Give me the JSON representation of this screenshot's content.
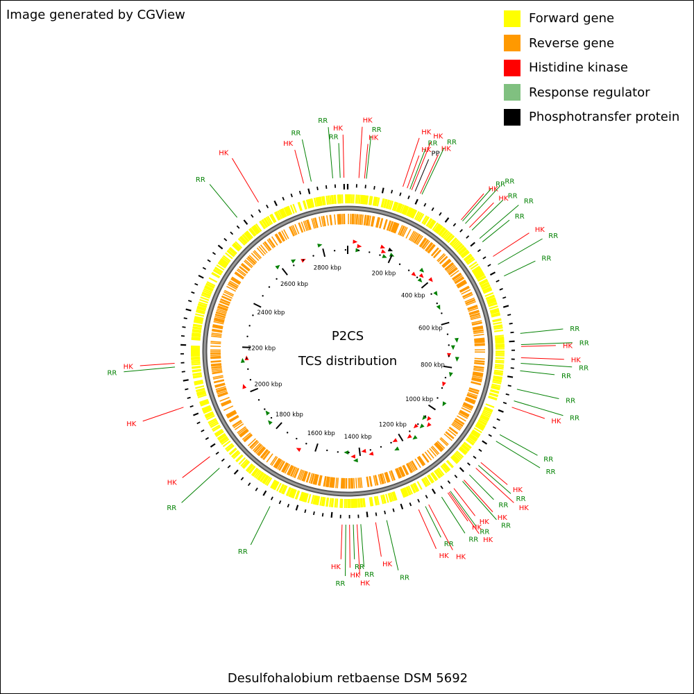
{
  "credit": "Image generated by CGView",
  "title": "P2CS",
  "subtitle": "TCS distribution",
  "organism": "Desulfohalobium retbaense DSM 5692",
  "legend": [
    {
      "label": "Forward gene",
      "color": "#ffff00"
    },
    {
      "label": "Reverse gene",
      "color": "#ff9900"
    },
    {
      "label": "Histidine kinase",
      "color": "#ff0000"
    },
    {
      "label": "Response regulator",
      "color": "#80c080"
    },
    {
      "label": "Phosphotransfer protein",
      "color": "#000000"
    }
  ],
  "colors": {
    "forward": "#ffff00",
    "reverse": "#ff9900",
    "hk": "#ff0000",
    "rr": "#008000",
    "rr_legend": "#80c080",
    "pp": "#000000",
    "backbone": "#808080"
  },
  "genome_length_kbp": 2910,
  "tick_labels": [
    "200 kbp",
    "400 kbp",
    "600 kbp",
    "800 kbp",
    "1000 kbp",
    "1200 kbp",
    "1400 kbp",
    "1600 kbp",
    "1800 kbp",
    "2000 kbp",
    "2200 kbp",
    "2400 kbp",
    "2600 kbp",
    "2800 kbp"
  ],
  "tick_positions_kbp": [
    200,
    400,
    600,
    800,
    1000,
    1200,
    1400,
    1600,
    1800,
    2000,
    2200,
    2400,
    2600,
    2800
  ],
  "feature_labels": [
    {
      "text": "HK",
      "type": "hk",
      "kbp": 2791
    },
    {
      "text": "RR",
      "type": "rr",
      "kbp": 2812
    },
    {
      "text": "RR",
      "type": "rr",
      "kbp": 2870
    },
    {
      "text": "RR",
      "type": "rr",
      "kbp": 2890
    },
    {
      "text": "HK",
      "type": "hk",
      "kbp": 2900
    },
    {
      "text": "HK",
      "type": "hk",
      "kbp": 30
    },
    {
      "text": "HK",
      "type": "hk",
      "kbp": 45
    },
    {
      "text": "RR",
      "type": "rr",
      "kbp": 50
    },
    {
      "text": "HK",
      "type": "hk",
      "kbp": 150
    },
    {
      "text": "HK",
      "type": "hk",
      "kbp": 162
    },
    {
      "text": "RR",
      "type": "rr",
      "kbp": 170
    },
    {
      "text": "HK",
      "type": "hk",
      "kbp": 175
    },
    {
      "text": "PP",
      "type": "pp",
      "kbp": 185
    },
    {
      "text": "HK",
      "type": "hk",
      "kbp": 200
    },
    {
      "text": "RR",
      "type": "rr",
      "kbp": 205
    },
    {
      "text": "HK",
      "type": "hk",
      "kbp": 330
    },
    {
      "text": "RR",
      "type": "rr",
      "kbp": 335
    },
    {
      "text": "RR",
      "type": "rr",
      "kbp": 345
    },
    {
      "text": "HK",
      "type": "hk",
      "kbp": 360
    },
    {
      "text": "RR",
      "type": "rr",
      "kbp": 370
    },
    {
      "text": "RR",
      "type": "rr",
      "kbp": 400
    },
    {
      "text": "RR",
      "type": "rr",
      "kbp": 412
    },
    {
      "text": "HK",
      "type": "hk",
      "kbp": 460
    },
    {
      "text": "RR",
      "type": "rr",
      "kbp": 485
    },
    {
      "text": "RR",
      "type": "rr",
      "kbp": 520
    },
    {
      "text": "RR",
      "type": "rr",
      "kbp": 680
    },
    {
      "text": "RR",
      "type": "rr",
      "kbp": 710
    },
    {
      "text": "HK",
      "type": "hk",
      "kbp": 715
    },
    {
      "text": "HK",
      "type": "hk",
      "kbp": 745
    },
    {
      "text": "RR",
      "type": "rr",
      "kbp": 760
    },
    {
      "text": "RR",
      "type": "rr",
      "kbp": 780
    },
    {
      "text": "RR",
      "type": "rr",
      "kbp": 830
    },
    {
      "text": "RR",
      "type": "rr",
      "kbp": 862
    },
    {
      "text": "HK",
      "type": "hk",
      "kbp": 880
    },
    {
      "text": "RR",
      "type": "rr",
      "kbp": 960
    },
    {
      "text": "RR",
      "type": "rr",
      "kbp": 980
    },
    {
      "text": "HK",
      "type": "hk",
      "kbp": 1050
    },
    {
      "text": "RR",
      "type": "rr",
      "kbp": 1060
    },
    {
      "text": "HK",
      "type": "hk",
      "kbp": 1070
    },
    {
      "text": "RR",
      "type": "rr",
      "kbp": 1095
    },
    {
      "text": "HK",
      "type": "hk",
      "kbp": 1115
    },
    {
      "text": "RR",
      "type": "rr",
      "kbp": 1120
    },
    {
      "text": "HK",
      "type": "hk",
      "kbp": 1150
    },
    {
      "text": "RR",
      "type": "rr",
      "kbp": 1162
    },
    {
      "text": "HK",
      "type": "hk",
      "kbp": 1166
    },
    {
      "text": "HK",
      "type": "hk",
      "kbp": 1170
    },
    {
      "text": "RR",
      "type": "rr",
      "kbp": 1190
    },
    {
      "text": "HK",
      "type": "hk",
      "kbp": 1230
    },
    {
      "text": "RR",
      "type": "rr",
      "kbp": 1240
    },
    {
      "text": "HK",
      "type": "hk",
      "kbp": 1260
    },
    {
      "text": "RR",
      "type": "rr",
      "kbp": 1350
    },
    {
      "text": "HK",
      "type": "hk",
      "kbp": 1380
    },
    {
      "text": "RR",
      "type": "rr",
      "kbp": 1420
    },
    {
      "text": "HK",
      "type": "hk",
      "kbp": 1430
    },
    {
      "text": "RR",
      "type": "rr",
      "kbp": 1440
    },
    {
      "text": "HK",
      "type": "hk",
      "kbp": 1450
    },
    {
      "text": "RR",
      "type": "rr",
      "kbp": 1460
    },
    {
      "text": "HK",
      "type": "hk",
      "kbp": 1470
    },
    {
      "text": "RR",
      "type": "rr",
      "kbp": 1670
    },
    {
      "text": "RR",
      "type": "rr",
      "kbp": 1840
    },
    {
      "text": "HK",
      "type": "hk",
      "kbp": 1880
    },
    {
      "text": "HK",
      "type": "hk",
      "kbp": 2030
    },
    {
      "text": "RR",
      "type": "rr",
      "kbp": 2140
    },
    {
      "text": "HK",
      "type": "hk",
      "kbp": 2150
    },
    {
      "text": "RR",
      "type": "rr",
      "kbp": 2590
    },
    {
      "text": "HK",
      "type": "hk",
      "kbp": 2660
    }
  ],
  "tcs_markers": [
    {
      "kbp": 30,
      "type": "hk"
    },
    {
      "kbp": 50,
      "type": "hk"
    },
    {
      "kbp": 45,
      "type": "rr"
    },
    {
      "kbp": 150,
      "type": "hk"
    },
    {
      "kbp": 160,
      "type": "hk"
    },
    {
      "kbp": 172,
      "type": "rr"
    },
    {
      "kbp": 185,
      "type": "pp"
    },
    {
      "kbp": 200,
      "type": "rr"
    },
    {
      "kbp": 330,
      "type": "hk"
    },
    {
      "kbp": 345,
      "type": "rr"
    },
    {
      "kbp": 360,
      "type": "hk"
    },
    {
      "kbp": 370,
      "type": "rr"
    },
    {
      "kbp": 400,
      "type": "hk"
    },
    {
      "kbp": 460,
      "type": "rr"
    },
    {
      "kbp": 520,
      "type": "rr"
    },
    {
      "kbp": 680,
      "type": "rr"
    },
    {
      "kbp": 710,
      "type": "rr"
    },
    {
      "kbp": 745,
      "type": "hk"
    },
    {
      "kbp": 760,
      "type": "rr"
    },
    {
      "kbp": 830,
      "type": "rr"
    },
    {
      "kbp": 880,
      "type": "hk"
    },
    {
      "kbp": 960,
      "type": "rr"
    },
    {
      "kbp": 1050,
      "type": "hk"
    },
    {
      "kbp": 1060,
      "type": "rr"
    },
    {
      "kbp": 1070,
      "type": "hk"
    },
    {
      "kbp": 1095,
      "type": "rr"
    },
    {
      "kbp": 1115,
      "type": "hk"
    },
    {
      "kbp": 1150,
      "type": "rr"
    },
    {
      "kbp": 1166,
      "type": "hk"
    },
    {
      "kbp": 1230,
      "type": "hk"
    },
    {
      "kbp": 1240,
      "type": "rr"
    },
    {
      "kbp": 1350,
      "type": "hk"
    },
    {
      "kbp": 1380,
      "type": "hk"
    },
    {
      "kbp": 1420,
      "type": "rr"
    },
    {
      "kbp": 1430,
      "type": "hk"
    },
    {
      "kbp": 1460,
      "type": "rr"
    },
    {
      "kbp": 1670,
      "type": "hk"
    },
    {
      "kbp": 1840,
      "type": "rr"
    },
    {
      "kbp": 1880,
      "type": "rr"
    },
    {
      "kbp": 2030,
      "type": "hk"
    },
    {
      "kbp": 2140,
      "type": "rr"
    },
    {
      "kbp": 2150,
      "type": "hk"
    },
    {
      "kbp": 2590,
      "type": "rr"
    },
    {
      "kbp": 2660,
      "type": "rr"
    },
    {
      "kbp": 2700,
      "type": "hk"
    },
    {
      "kbp": 2790,
      "type": "rr"
    }
  ]
}
